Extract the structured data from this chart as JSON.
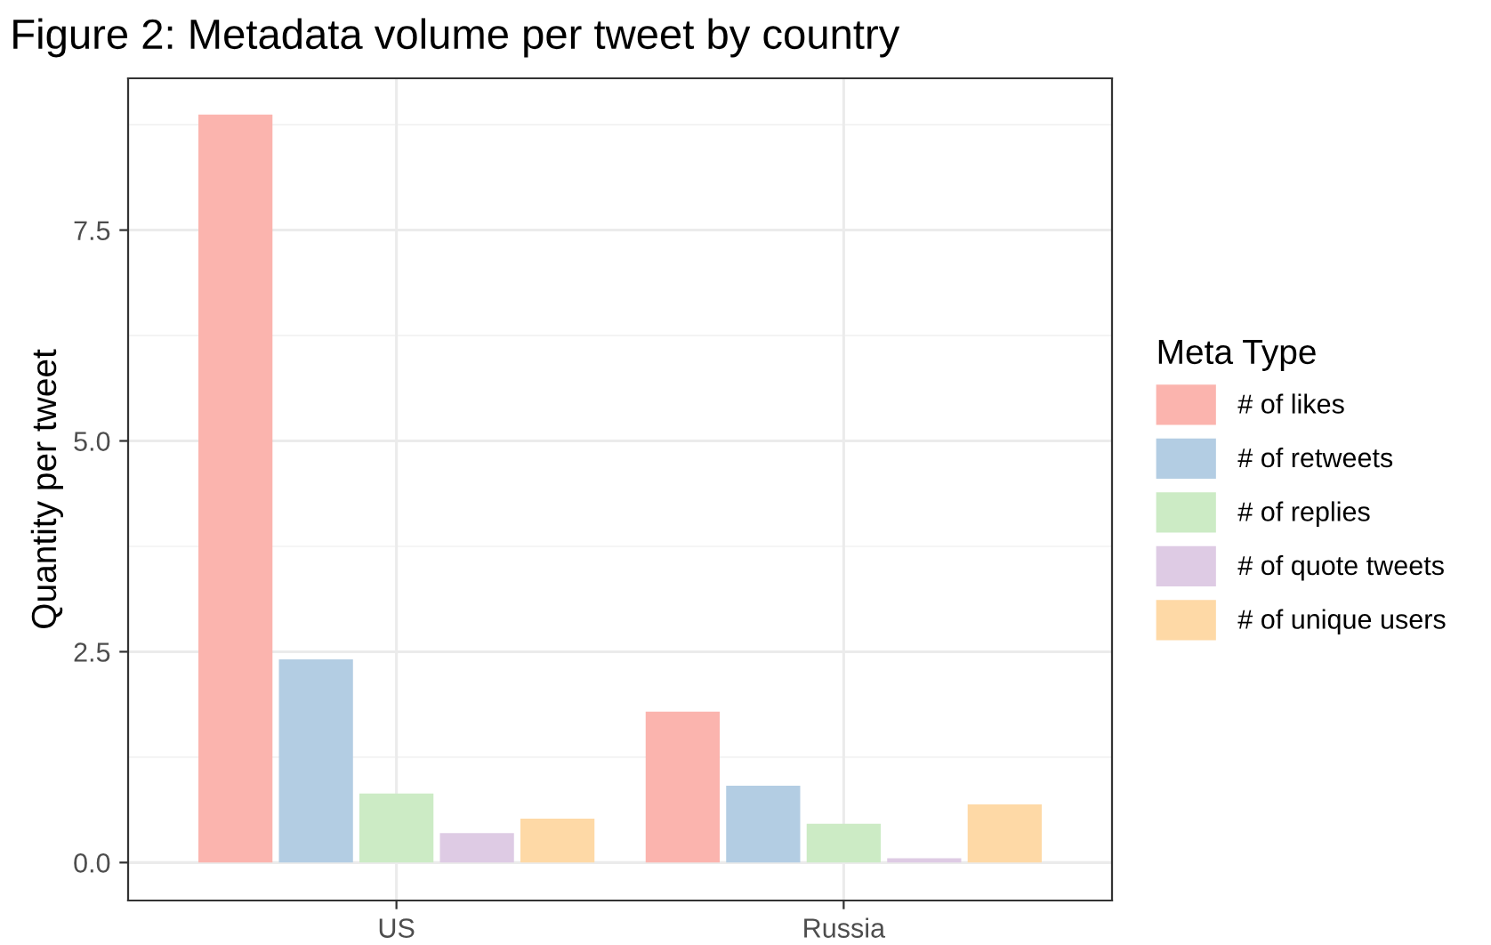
{
  "chart_data": {
    "type": "bar",
    "title": "Figure 2: Metadata volume per tweet by country",
    "ylabel": "Quantity per tweet",
    "legend_title": "Meta Type",
    "categories": [
      "US",
      "Russia"
    ],
    "series": [
      {
        "name": "# of likes",
        "color": "#fbb4ae",
        "values": [
          8.87,
          1.79
        ]
      },
      {
        "name": "# of retweets",
        "color": "#b3cde3",
        "values": [
          2.41,
          0.91
        ]
      },
      {
        "name": "# of replies",
        "color": "#ccebc5",
        "values": [
          0.82,
          0.46
        ]
      },
      {
        "name": "# of quote tweets",
        "color": "#decbe4",
        "values": [
          0.35,
          0.05
        ]
      },
      {
        "name": "# of unique users",
        "color": "#fed9a6",
        "values": [
          0.52,
          0.69
        ]
      }
    ],
    "ylim": [
      -0.45,
      9.3
    ],
    "yticks": [
      {
        "value": 0,
        "label": "0.0"
      },
      {
        "value": 2.5,
        "label": "2.5"
      },
      {
        "value": 5,
        "label": "5.0"
      },
      {
        "value": 7.5,
        "label": "7.5"
      }
    ],
    "grid": true,
    "legend": "right"
  }
}
